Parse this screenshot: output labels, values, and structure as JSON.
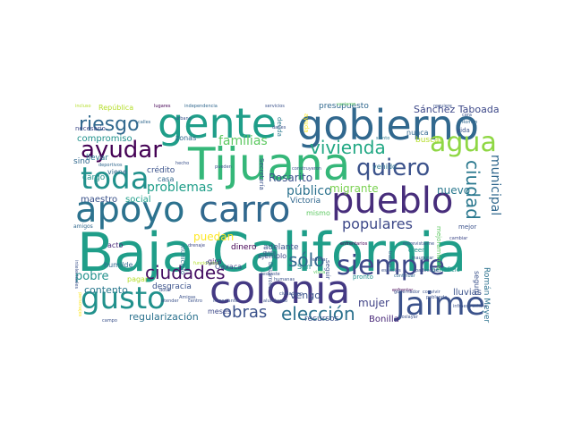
{
  "words": [
    {
      "text": "Baja California",
      "size": 60,
      "color": "#1f9e89"
    },
    {
      "text": "Tijuana",
      "size": 50,
      "color": "#35b779"
    },
    {
      "text": "gobierno",
      "size": 46,
      "color": "#31688e"
    },
    {
      "text": "gente",
      "size": 46,
      "color": "#1f9e89"
    },
    {
      "text": "colonia",
      "size": 44,
      "color": "#443983"
    },
    {
      "text": "apoyo",
      "size": 40,
      "color": "#2c728e"
    },
    {
      "text": "carro",
      "size": 40,
      "color": "#31688e"
    },
    {
      "text": "pueblo",
      "size": 40,
      "color": "#472d7b"
    },
    {
      "text": "Jaime",
      "size": 36,
      "color": "#3b528b"
    },
    {
      "text": "gusto",
      "size": 34,
      "color": "#21918c"
    },
    {
      "text": "toda",
      "size": 34,
      "color": "#21918c"
    },
    {
      "text": "siempre",
      "size": 30,
      "color": "#3e4989"
    },
    {
      "text": "agua",
      "size": 30,
      "color": "#8fd744"
    },
    {
      "text": "ayudar",
      "size": 26,
      "color": "#440154"
    },
    {
      "text": "quiero",
      "size": 26,
      "color": "#3b528b"
    },
    {
      "text": "riesgo",
      "size": 22,
      "color": "#31688e"
    },
    {
      "text": "ciudades",
      "size": 20,
      "color": "#471164"
    },
    {
      "text": "vivienda",
      "size": 20,
      "color": "#22a884"
    },
    {
      "text": "sólo",
      "size": 20,
      "color": "#31688e"
    },
    {
      "text": "ciudad",
      "size": 20,
      "color": "#2a788e"
    },
    {
      "text": "elección",
      "size": 20,
      "color": "#2c728e"
    },
    {
      "text": "obras",
      "size": 18,
      "color": "#3b528b"
    },
    {
      "text": "populares",
      "size": 16,
      "color": "#3e4989"
    },
    {
      "text": "problemas",
      "size": 14,
      "color": "#1f9e89"
    },
    {
      "text": "público",
      "size": 14,
      "color": "#2c728e"
    },
    {
      "text": "familias",
      "size": 14,
      "color": "#5ec962"
    },
    {
      "text": "municipal",
      "size": 14,
      "color": "#31688e"
    },
    {
      "text": "pobre",
      "size": 13,
      "color": "#21918c"
    },
    {
      "text": "mujer",
      "size": 12,
      "color": "#414487"
    },
    {
      "text": "nuevo",
      "size": 12,
      "color": "#2a788e"
    },
    {
      "text": "migrante",
      "size": 12,
      "color": "#7ad151"
    },
    {
      "text": "puedan",
      "size": 12,
      "color": "#fde725"
    },
    {
      "text": "Rosarito",
      "size": 12,
      "color": "#3b528b"
    },
    {
      "text": "Sánchez Taboada",
      "size": 11,
      "color": "#3e4989"
    },
    {
      "text": "regularización",
      "size": 11,
      "color": "#2c728e"
    },
    {
      "text": "contento",
      "size": 11,
      "color": "#2a788e"
    },
    {
      "text": "compromiso",
      "size": 10,
      "color": "#21918c"
    },
    {
      "text": "maestro",
      "size": 10,
      "color": "#3b528b"
    },
    {
      "text": "social",
      "size": 10,
      "color": "#1f9e89"
    },
    {
      "text": "vengo",
      "size": 11,
      "color": "#3b528b"
    },
    {
      "text": "Victoria",
      "size": 9,
      "color": "#31688e"
    },
    {
      "text": "mismo",
      "size": 8,
      "color": "#5ec962"
    },
    {
      "text": "lluvias",
      "size": 10,
      "color": "#3b528b"
    },
    {
      "text": "seguro",
      "size": 8,
      "color": "#3b528b"
    },
    {
      "text": "Bonilla",
      "size": 10,
      "color": "#482878"
    },
    {
      "text": "Román Meyer",
      "size": 9,
      "color": "#2c728e"
    },
    {
      "text": "presupuesto",
      "size": 9,
      "color": "#31688e"
    },
    {
      "text": "desgracia",
      "size": 9,
      "color": "#3b528b"
    },
    {
      "text": "cargo",
      "size": 9,
      "color": "#21918c"
    },
    {
      "text": "pagar",
      "size": 8,
      "color": "#b5de2b"
    },
    {
      "text": "dinero",
      "size": 9,
      "color": "#440154"
    },
    {
      "text": "adelante",
      "size": 9,
      "color": "#3b528b"
    },
    {
      "text": "ejemplo",
      "size": 8,
      "color": "#3e4989"
    },
    {
      "text": "nunca",
      "size": 8,
      "color": "#31688e"
    },
    {
      "text": "venido",
      "size": 8,
      "color": "#2c728e"
    },
    {
      "text": "buscar",
      "size": 9,
      "color": "#b5de2b"
    },
    {
      "text": "crédito",
      "size": 9,
      "color": "#3b528b"
    },
    {
      "text": "casa",
      "size": 8,
      "color": "#31688e"
    },
    {
      "text": "llevar",
      "size": 9,
      "color": "#2a788e"
    },
    {
      "text": "sino",
      "size": 9,
      "color": "#31688e"
    },
    {
      "text": "viene",
      "size": 8,
      "color": "#31688e"
    },
    {
      "text": "acto",
      "size": 8,
      "color": "#482878"
    },
    {
      "text": "meses",
      "size": 8,
      "color": "#3e4989"
    },
    {
      "text": "humilde",
      "size": 8,
      "color": "#31688e"
    },
    {
      "text": "Oaxaca",
      "size": 8,
      "color": "#3e4989"
    },
    {
      "text": "gira",
      "size": 8,
      "color": "#482878"
    },
    {
      "text": "San",
      "size": 8,
      "color": "#21918c"
    },
    {
      "text": "seguir",
      "size": 7,
      "color": "#3b528b"
    },
    {
      "text": "mejor",
      "size": 7,
      "color": "#3b528b"
    },
    {
      "text": "creen",
      "size": 7,
      "color": "#21918c"
    },
    {
      "text": "pronto",
      "size": 7,
      "color": "#21918c"
    },
    {
      "text": "beneficio",
      "size": 7,
      "color": "#21918c"
    },
    {
      "text": "zonas",
      "size": 8,
      "color": "#31688e"
    },
    {
      "text": "República",
      "size": 8,
      "color": "#b5de2b"
    },
    {
      "text": "necesario",
      "size": 7,
      "color": "#3e4989"
    },
    {
      "text": "amigos",
      "size": 6,
      "color": "#31688e"
    },
    {
      "text": "municipio",
      "size": 7,
      "color": "#2c728e"
    },
    {
      "text": "vida",
      "size": 7,
      "color": "#3b528b"
    },
    {
      "text": "mejoramiento",
      "size": 7,
      "color": "#5ec962"
    },
    {
      "text": "Secretaría",
      "size": 7,
      "color": "#3b528b"
    },
    {
      "text": "Desarrollo",
      "size": 6,
      "color": "#3b528b"
    },
    {
      "text": "deuda",
      "size": 7,
      "color": "#2a788e"
    },
    {
      "text": "ayuda",
      "size": 7,
      "color": "#fde725"
    },
    {
      "text": "lugares",
      "size": 5,
      "color": "#440154"
    },
    {
      "text": "independencia",
      "size": 5,
      "color": "#31688e"
    },
    {
      "text": "construyeron",
      "size": 5,
      "color": "#3b528b"
    },
    {
      "text": "servicios",
      "size": 5,
      "color": "#3b528b"
    },
    {
      "text": "urbano",
      "size": 5,
      "color": "#3b528b"
    },
    {
      "text": "incluso",
      "size": 5,
      "color": "#b5de2b"
    },
    {
      "text": "deportivos",
      "size": 5,
      "color": "#31688e"
    },
    {
      "text": "hecho",
      "size": 5,
      "color": "#3b528b"
    },
    {
      "text": "pueden",
      "size": 5,
      "color": "#3b528b"
    },
    {
      "text": "siento",
      "size": 5,
      "color": "#2a788e"
    },
    {
      "text": "vaciaron",
      "size": 5,
      "color": "#5ec962"
    },
    {
      "text": "requiere",
      "size": 5,
      "color": "#3b528b"
    },
    {
      "text": "cara",
      "size": 5,
      "color": "#3b528b"
    },
    {
      "text": "Roman",
      "size": 5,
      "color": "#31688e"
    },
    {
      "text": "cambiar",
      "size": 5,
      "color": "#3e4989"
    },
    {
      "text": "enfrentarios",
      "size": 5,
      "color": "#440154"
    },
    {
      "text": "entrevistarme",
      "size": 5,
      "color": "#3b528b"
    },
    {
      "text": "inaugurar",
      "size": 5,
      "color": "#3b528b"
    },
    {
      "text": "drenaje",
      "size": 5,
      "color": "#3e4989"
    },
    {
      "text": "funcionaba",
      "size": 5,
      "color": "#b5de2b"
    },
    {
      "text": "Felicitar",
      "size": 5,
      "color": "#3b528b"
    },
    {
      "text": "gusta",
      "size": 5,
      "color": "#3b528b"
    },
    {
      "text": "visita",
      "size": 5,
      "color": "#5ec962"
    },
    {
      "text": "espacios",
      "size": 5,
      "color": "#3b528b"
    },
    {
      "text": "padecerse",
      "size": 5,
      "color": "#3b528b"
    },
    {
      "text": "enfrentar",
      "size": 5,
      "color": "#440154"
    },
    {
      "text": "poblando",
      "size": 5,
      "color": "#3b528b"
    },
    {
      "text": "infraestructura",
      "size": 5,
      "color": "#3b528b"
    },
    {
      "text": "gobernador",
      "size": 5,
      "color": "#3b528b"
    },
    {
      "text": "convivir",
      "size": 5,
      "color": "#3b528b"
    },
    {
      "text": "continuar",
      "size": 5,
      "color": "#31688e"
    },
    {
      "text": "trabajo",
      "size": 5,
      "color": "#3b528b"
    },
    {
      "text": "Amigas",
      "size": 5,
      "color": "#3b528b"
    },
    {
      "text": "alumbrado",
      "size": 5,
      "color": "#3b528b"
    },
    {
      "text": "ciudadano",
      "size": 5,
      "color": "#3b528b"
    },
    {
      "text": "humanas",
      "size": 5,
      "color": "#3b528b"
    },
    {
      "text": "atender",
      "size": 5,
      "color": "#3b528b"
    },
    {
      "text": "centro",
      "size": 5,
      "color": "#3b528b"
    },
    {
      "text": "importante",
      "size": 5,
      "color": "#3b528b"
    },
    {
      "text": "campo",
      "size": 5,
      "color": "#3b528b"
    },
    {
      "text": "soslayar",
      "size": 5,
      "color": "#3b528b"
    },
    {
      "text": "intelectuales",
      "size": 5,
      "color": "#3b528b"
    },
    {
      "text": "personajes",
      "size": 5,
      "color": "#fde725"
    },
    {
      "text": "calles",
      "size": 5,
      "color": "#31688e"
    },
    {
      "text": "darles",
      "size": 5,
      "color": "#3b528b"
    },
    {
      "text": "dotar",
      "size": 5,
      "color": "#3b528b"
    },
    {
      "text": "Puedo",
      "size": 5,
      "color": "#3b528b"
    },
    {
      "text": "desbaste",
      "size": 5,
      "color": "#3b528b"
    },
    {
      "text": "recursos",
      "size": 9,
      "color": "#3b528b"
    }
  ]
}
